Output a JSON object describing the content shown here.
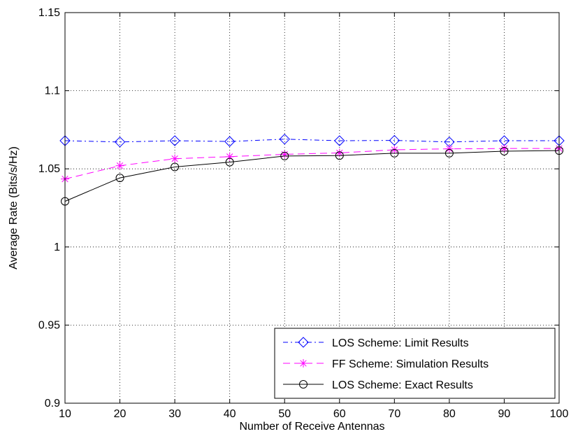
{
  "chart_data": {
    "type": "line",
    "xlabel": "Number of Receive Antennas",
    "ylabel": "Average Rate (Bits/s/Hz)",
    "xlim": [
      10,
      100
    ],
    "ylim": [
      0.9,
      1.15
    ],
    "xticks": [
      "10",
      "20",
      "30",
      "40",
      "50",
      "60",
      "70",
      "80",
      "90",
      "100"
    ],
    "yticks": [
      "0.9",
      "0.95",
      "1",
      "1.05",
      "1.1",
      "1.15"
    ],
    "grid": true,
    "legend_position": "bottom-right",
    "x": [
      10,
      20,
      30,
      40,
      50,
      60,
      70,
      80,
      90,
      100
    ],
    "series": [
      {
        "name": "LOS Scheme: Limit Results",
        "values": [
          1.068,
          1.0672,
          1.068,
          1.0675,
          1.069,
          1.068,
          1.0682,
          1.0672,
          1.068,
          1.068
        ],
        "color": "#0000ff",
        "line_style": "dash-dot",
        "marker": "diamond"
      },
      {
        "name": "FF Scheme: Simulation Results",
        "values": [
          1.0435,
          1.052,
          1.0565,
          1.0578,
          1.0593,
          1.0602,
          1.0622,
          1.0628,
          1.063,
          1.063
        ],
        "color": "#ff00ff",
        "line_style": "dashed",
        "marker": "asterisk"
      },
      {
        "name": "LOS Scheme: Exact Results",
        "values": [
          1.0292,
          1.0442,
          1.0512,
          1.0543,
          1.0582,
          1.0585,
          1.06,
          1.06,
          1.0613,
          1.0617
        ],
        "color": "#000000",
        "line_style": "solid",
        "marker": "circle"
      }
    ]
  }
}
